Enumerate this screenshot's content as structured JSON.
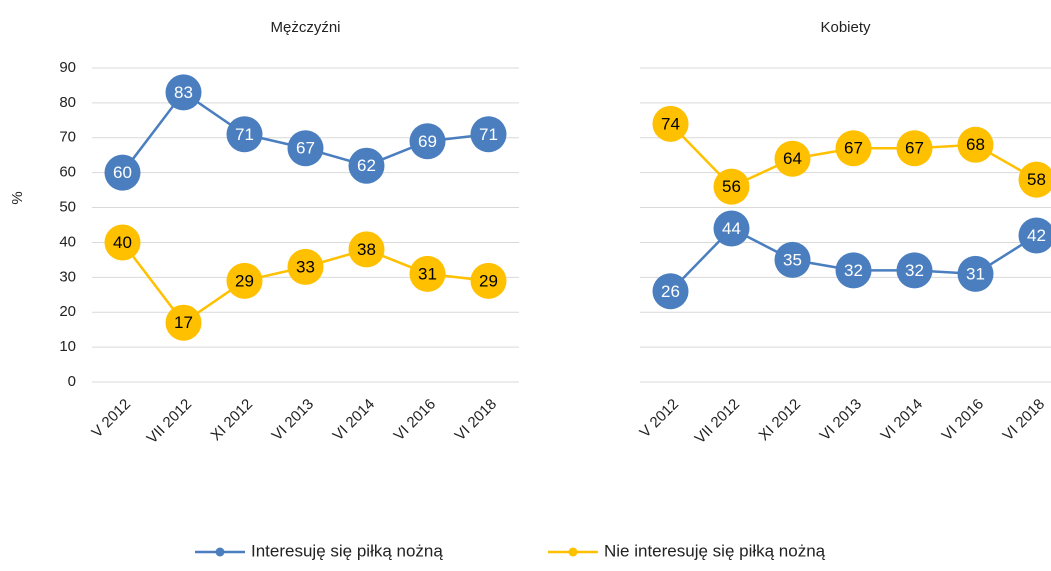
{
  "chart_data": [
    {
      "type": "line",
      "title": "Mężczyźni",
      "y_label": "%",
      "categories": [
        "V 2012",
        "VII 2012",
        "XI 2012",
        "VI 2013",
        "VI 2014",
        "VI 2016",
        "VI 2018"
      ],
      "series": [
        {
          "name": "Interesuję się piłką nożną",
          "color": "#4a7ebf",
          "values": [
            60,
            83,
            71,
            67,
            62,
            69,
            71
          ]
        },
        {
          "name": "Nie interesuję się piłką nożną",
          "color": "#ffc000",
          "values": [
            40,
            17,
            29,
            33,
            38,
            31,
            29
          ]
        }
      ],
      "ylim": [
        0,
        90
      ],
      "yticks": [
        0,
        10,
        20,
        30,
        40,
        50,
        60,
        70,
        80,
        90
      ],
      "grid": true
    },
    {
      "type": "line",
      "title": "Kobiety",
      "categories": [
        "V 2012",
        "VII 2012",
        "XI 2012",
        "VI 2013",
        "VI 2014",
        "VI 2016",
        "VI 2018"
      ],
      "series": [
        {
          "name": "Interesuję się piłką nożną",
          "color": "#4a7ebf",
          "values": [
            26,
            44,
            35,
            32,
            32,
            31,
            42
          ]
        },
        {
          "name": "Nie interesuję się piłką nożną",
          "color": "#ffc000",
          "values": [
            74,
            56,
            64,
            67,
            67,
            68,
            58
          ]
        }
      ],
      "ylim": [
        0,
        90
      ],
      "yticks": [
        0,
        10,
        20,
        30,
        40,
        50,
        60,
        70,
        80,
        90
      ],
      "grid": true
    }
  ]
}
